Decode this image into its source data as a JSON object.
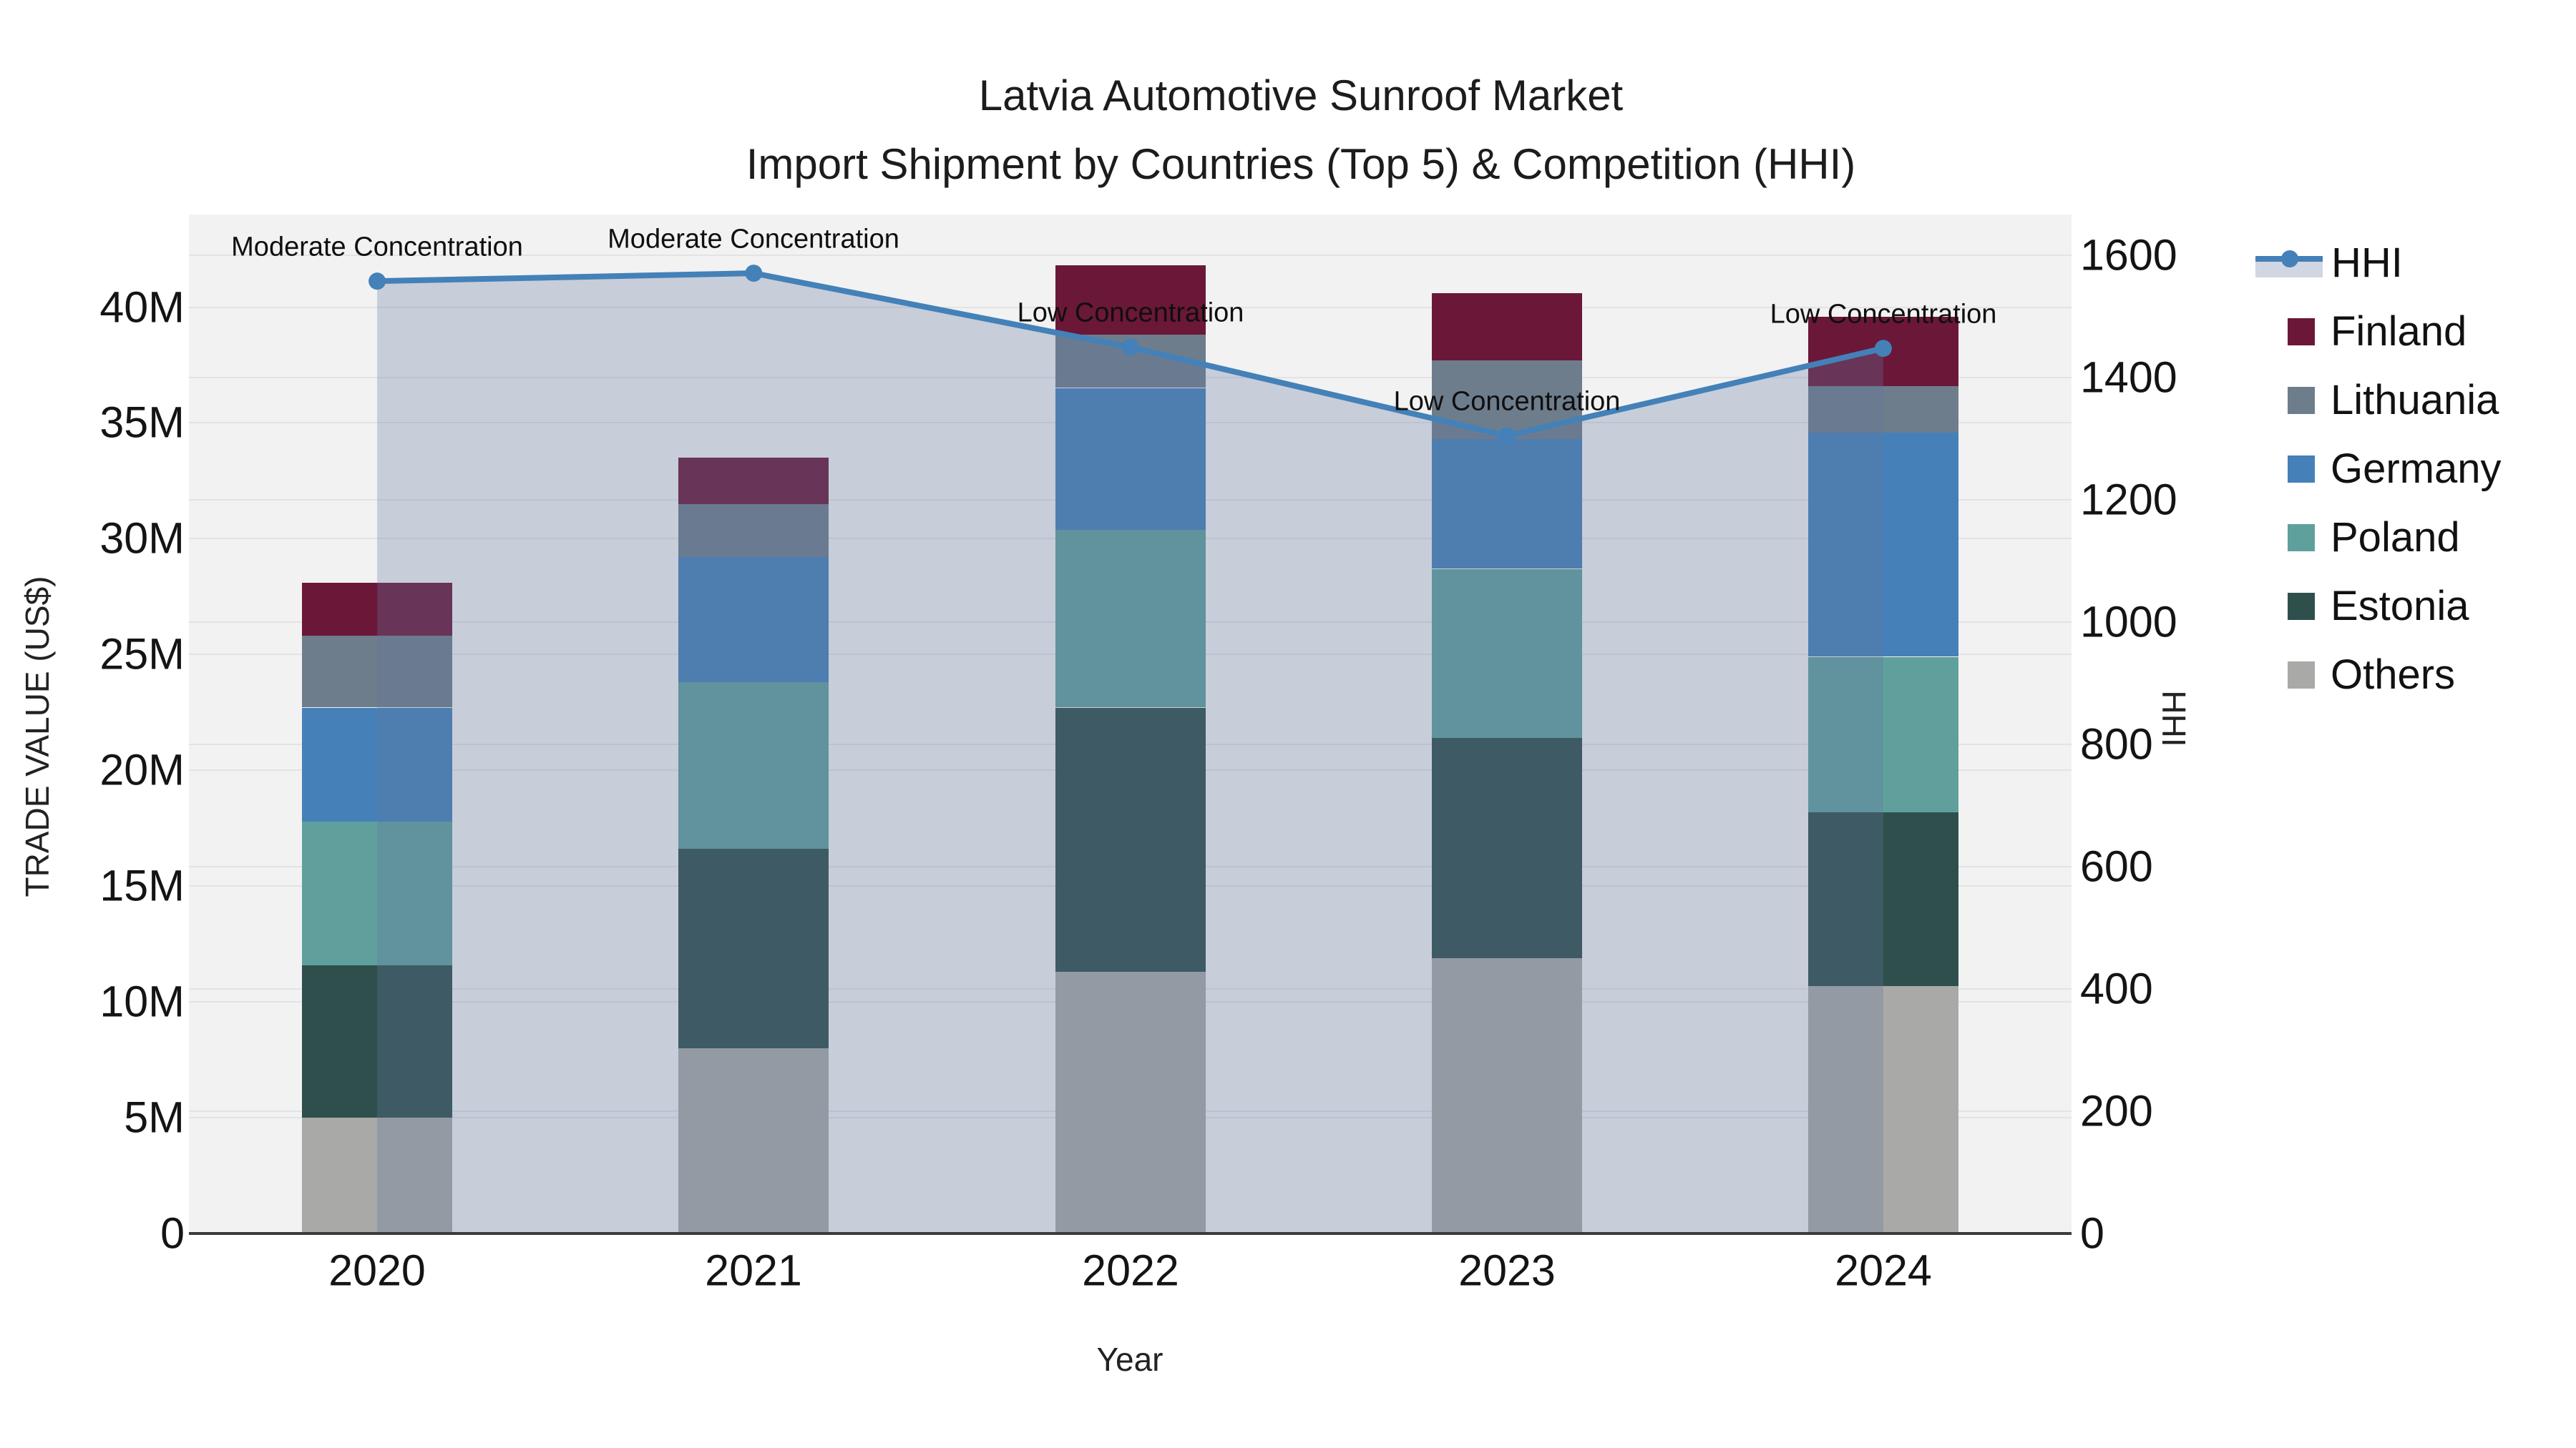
{
  "chart_data": {
    "type": "stacked_bar+line",
    "title_line1": "Latvia Automotive Sunroof Market",
    "title_line2": "Import Shipment by Countries (Top 5) & Competition (HHI)",
    "categories": [
      "2020",
      "2021",
      "2022",
      "2023",
      "2024"
    ],
    "xlabel": "Year",
    "y_left": {
      "label": "TRADE VALUE (US$)",
      "unit": "M",
      "tick_values": [
        0,
        5,
        10,
        15,
        20,
        25,
        30,
        35,
        40
      ],
      "tick_labels": [
        "0",
        "5M",
        "10M",
        "15M",
        "20M",
        "25M",
        "30M",
        "35M",
        "40M"
      ],
      "lim": [
        0,
        44
      ]
    },
    "y_right": {
      "label": "HHI",
      "tick_values": [
        0,
        200,
        400,
        600,
        800,
        1000,
        1200,
        1400,
        1600
      ],
      "tick_labels": [
        "0",
        "200",
        "400",
        "600",
        "800",
        "1000",
        "1200",
        "1400",
        "1600"
      ],
      "lim": [
        0,
        1667
      ]
    },
    "bar_series": [
      {
        "name": "Others",
        "color": "#A9A9A7",
        "values": [
          5.0,
          8.0,
          11.3,
          11.9,
          10.7
        ]
      },
      {
        "name": "Estonia",
        "color": "#2F4F4C",
        "values": [
          6.6,
          8.6,
          11.4,
          9.5,
          7.5
        ]
      },
      {
        "name": "Poland",
        "color": "#5FA09D",
        "values": [
          6.2,
          7.2,
          7.7,
          7.3,
          6.7
        ]
      },
      {
        "name": "Germany",
        "color": "#4680B8",
        "values": [
          4.9,
          5.4,
          6.1,
          5.6,
          9.7
        ]
      },
      {
        "name": "Lithuania",
        "color": "#6E7D8C",
        "values": [
          3.1,
          2.3,
          2.3,
          3.4,
          2.0
        ]
      },
      {
        "name": "Finland",
        "color": "#6B1738",
        "values": [
          2.3,
          2.0,
          3.0,
          2.9,
          3.0
        ]
      }
    ],
    "line_series": {
      "name": "HHI",
      "color": "#4381B8",
      "fill_color": "rgba(100,120,160,0.30)",
      "values": [
        1558,
        1571,
        1450,
        1305,
        1448
      ],
      "annotations": [
        "Moderate Concentration",
        "Moderate Concentration",
        "Low Concentration",
        "Low Concentration",
        "Low Concentration"
      ]
    },
    "legend_order": [
      "HHI",
      "Finland",
      "Lithuania",
      "Germany",
      "Poland",
      "Estonia",
      "Others"
    ],
    "grid": true,
    "legend_position": "right"
  },
  "colors": {
    "plot_background": "#f2f2f2",
    "gridline": "#e3e3e6",
    "axis_line": "#3b3b3b",
    "text": "#111111"
  }
}
